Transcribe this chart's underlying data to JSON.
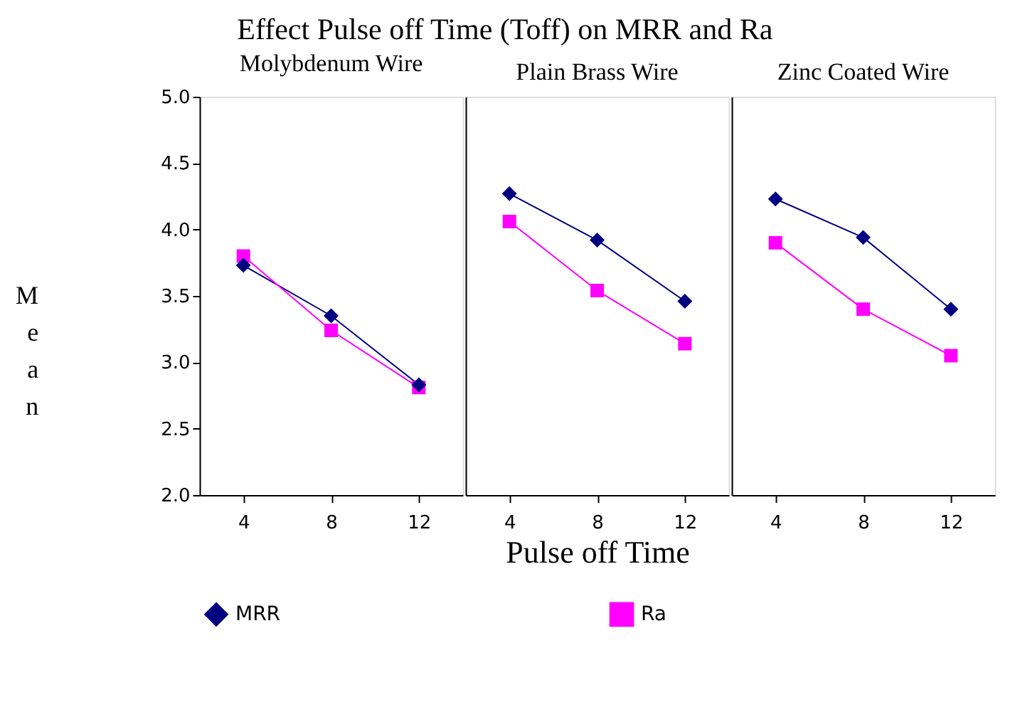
{
  "chart_data": [
    {
      "type": "line",
      "title": "Effect Pulse off Time (Toff) on MRR and Ra",
      "subtitle": "Molybdenum Wire",
      "ylabel": "Mean",
      "categories": [
        "4",
        "8",
        "12"
      ],
      "ylim": [
        2.0,
        5.0
      ],
      "yticks": [
        {
          "value": 2,
          "label": "2.0"
        },
        {
          "value": 2.5,
          "label": "2.5"
        },
        {
          "value": 3,
          "label": "3.0"
        },
        {
          "value": 3.5,
          "label": "3.5"
        },
        {
          "value": 4,
          "label": "4.0"
        },
        {
          "value": 4.5,
          "label": "4.5"
        },
        {
          "value": 5,
          "label": "5.0"
        }
      ],
      "grid": false,
      "legend": "bottom",
      "line_style": "solid",
      "series": [
        {
          "name": "MRR",
          "color": "#000080",
          "marker": "diamond",
          "values": [
            3.73,
            3.35,
            2.83
          ]
        },
        {
          "name": "Ra",
          "color": "#ff00ff",
          "marker": "square",
          "values": [
            3.8,
            3.24,
            2.81
          ]
        }
      ]
    },
    {
      "type": "line",
      "title": "Plain Brass Wire",
      "xlabel": "Pulse off Time",
      "categories": [
        "4",
        "8",
        "12"
      ],
      "ylim": [
        2.0,
        5.0
      ],
      "tick_labels": "x",
      "grid": false,
      "line_style": "solid",
      "series": [
        {
          "color": "#000080",
          "marker": "diamond",
          "values": [
            4.27,
            3.92,
            3.46
          ]
        },
        {
          "color": "#ff00ff",
          "marker": "square",
          "values": [
            4.06,
            3.54,
            3.14
          ]
        }
      ]
    },
    {
      "type": "line",
      "title": "Zinc Coated Wire",
      "categories": [
        "4",
        "8",
        "12"
      ],
      "ylim": [
        2.0,
        5.0
      ],
      "tick_labels": "x",
      "grid": false,
      "line_style": "solid",
      "series": [
        {
          "color": "#000080",
          "marker": "diamond",
          "values": [
            4.23,
            3.94,
            3.4
          ]
        },
        {
          "color": "#ff00ff",
          "marker": "square",
          "values": [
            3.9,
            3.4,
            3.05
          ]
        }
      ]
    }
  ]
}
